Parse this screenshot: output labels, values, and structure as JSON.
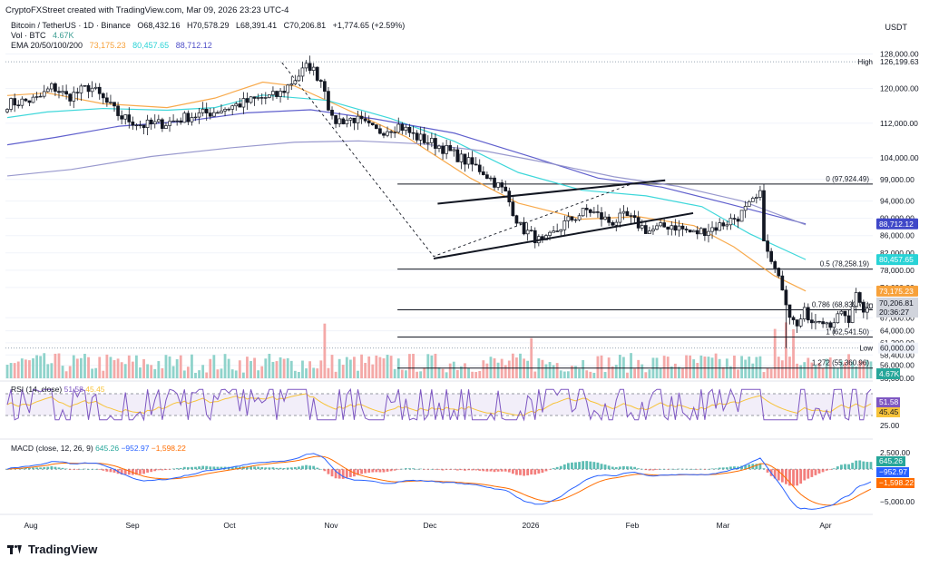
{
  "header": {
    "credit": "CryptoFXStreet created with TradingView.com, Mar 09, 2026 23:23 UTC-4",
    "symbol_line": "Bitcoin / TetherUS · 1D · Binance",
    "open": "O68,432.16",
    "high": "H70,578.29",
    "low": "L68,391.41",
    "close": "C70,206.81",
    "change": "+1,774.65 (+2.59%)",
    "vol_label": "Vol · BTC",
    "vol_value": "4.67K",
    "ema_label": "EMA 20/50/100/200",
    "ema20": "73,175.23",
    "ema50": "80,457.65",
    "ema100": "88,712.12",
    "currency": "USDT"
  },
  "colors": {
    "up": "#26a69a",
    "down": "#ef5350",
    "ema20": "#f7a13a",
    "ema50": "#29d3d6",
    "ema100": "#4f4fc8",
    "rsi": "#7e57c2",
    "rsi_ma": "#f7c33a",
    "macd": "#2962ff",
    "signal": "#ff6d00"
  },
  "brand": {
    "name": "TradingView"
  },
  "chart_data": {
    "type": "candlestick",
    "y_ticks": [
      "128,000.00",
      "120,000.00",
      "112,000.00",
      "104,000.00",
      "99,000.00",
      "94,000.00",
      "90,000.00",
      "86,000.00",
      "82,000.00",
      "78,000.00",
      "74,000.00",
      "67,000.00",
      "64,000.00",
      "61,200.00",
      "58,400.00",
      "56,000.00",
      "53,000.00"
    ],
    "y_tick_values": [
      128000,
      120000,
      112000,
      104000,
      99000,
      94000,
      90000,
      86000,
      82000,
      78000,
      74000,
      67000,
      64000,
      61200,
      58400,
      56000,
      53000
    ],
    "x_ticks": [
      "Aug",
      "Sep",
      "Oct",
      "Nov",
      "Dec",
      "2026",
      "Feb",
      "Mar",
      "Apr"
    ],
    "ylim": [
      53000,
      130000
    ],
    "high_line": {
      "label": "High",
      "value": 126199.63,
      "text": "126,199.63"
    },
    "low_line": {
      "label": "Low",
      "value": 60000,
      "text": "60,000.00"
    },
    "fib_levels": [
      {
        "label": "0 (97,924.49)",
        "value": 97924.49
      },
      {
        "label": "0.5 (78,258.19)",
        "value": 78258.19
      },
      {
        "label": "0.786 (68,839.71)",
        "value": 68839.71
      },
      {
        "label": "1 (62,541.50)",
        "value": 62541.5
      },
      {
        "label": "1.272 (55,360.96)",
        "value": 55360.96
      }
    ],
    "price_tags": {
      "ema100": "88,712.12",
      "ema50": "80,457.65",
      "ema20": "73,175.23",
      "last": "70,206.81",
      "countdown": "20:36:27",
      "volume": "4.67K"
    },
    "ema_series": {
      "ema20": [
        [
          0.0,
          118400
        ],
        [
          0.05,
          119000
        ],
        [
          0.12,
          116500
        ],
        [
          0.2,
          115600
        ],
        [
          0.26,
          117800
        ],
        [
          0.32,
          121500
        ],
        [
          0.36,
          120600
        ],
        [
          0.42,
          115600
        ],
        [
          0.5,
          108800
        ],
        [
          0.58,
          99300
        ],
        [
          0.64,
          93500
        ],
        [
          0.72,
          89800
        ],
        [
          0.79,
          90400
        ],
        [
          0.86,
          88300
        ],
        [
          0.91,
          83400
        ],
        [
          0.96,
          76800
        ],
        [
          1.0,
          73175
        ]
      ],
      "ema50": [
        [
          0.0,
          113300
        ],
        [
          0.05,
          114600
        ],
        [
          0.12,
          115400
        ],
        [
          0.2,
          115000
        ],
        [
          0.26,
          115600
        ],
        [
          0.32,
          118500
        ],
        [
          0.4,
          117300
        ],
        [
          0.48,
          113100
        ],
        [
          0.56,
          107800
        ],
        [
          0.64,
          100600
        ],
        [
          0.72,
          96500
        ],
        [
          0.8,
          95200
        ],
        [
          0.87,
          92700
        ],
        [
          0.93,
          86400
        ],
        [
          1.0,
          80457
        ]
      ],
      "ema100": [
        [
          0.0,
          107000
        ],
        [
          0.06,
          108700
        ],
        [
          0.14,
          111300
        ],
        [
          0.22,
          112400
        ],
        [
          0.3,
          114400
        ],
        [
          0.38,
          115100
        ],
        [
          0.46,
          113000
        ],
        [
          0.56,
          109700
        ],
        [
          0.66,
          104000
        ],
        [
          0.74,
          99300
        ],
        [
          0.82,
          97200
        ],
        [
          0.9,
          93500
        ],
        [
          1.0,
          88712
        ]
      ],
      "ema200": [
        [
          0.0,
          99800
        ],
        [
          0.08,
          101300
        ],
        [
          0.18,
          104300
        ],
        [
          0.28,
          106300
        ],
        [
          0.36,
          107600
        ],
        [
          0.44,
          107900
        ],
        [
          0.52,
          107200
        ],
        [
          0.6,
          105500
        ],
        [
          0.68,
          102700
        ],
        [
          0.76,
          99600
        ],
        [
          0.84,
          97400
        ],
        [
          0.92,
          94000
        ],
        [
          1.0,
          88500
        ]
      ]
    },
    "wedge": [
      {
        "from": [
          0.539,
          93400
        ],
        "to": [
          0.824,
          98800
        ]
      },
      {
        "from": [
          0.534,
          80700
        ],
        "to": [
          0.859,
          91200
        ]
      }
    ],
    "dashed_swing": [
      [
        0.344,
        126000
      ],
      [
        0.534,
        81200
      ],
      [
        0.78,
        97800
      ]
    ],
    "rsi": {
      "title": "RSI (14, close)",
      "value": "51.58",
      "ma": "45.45",
      "levels": [
        70,
        30
      ],
      "tick": "25.00",
      "ylim": [
        20,
        80
      ]
    },
    "macd": {
      "title": "MACD (close, 12, 26, 9)",
      "hist": "645.26",
      "macd": "−952.97",
      "signal": "−1,598.22",
      "ticks": [
        "2,500.00",
        "−5,000.00"
      ],
      "tick_values": [
        2500,
        -5000
      ],
      "ylim": [
        -6500,
        3500
      ]
    },
    "candles": []
  }
}
